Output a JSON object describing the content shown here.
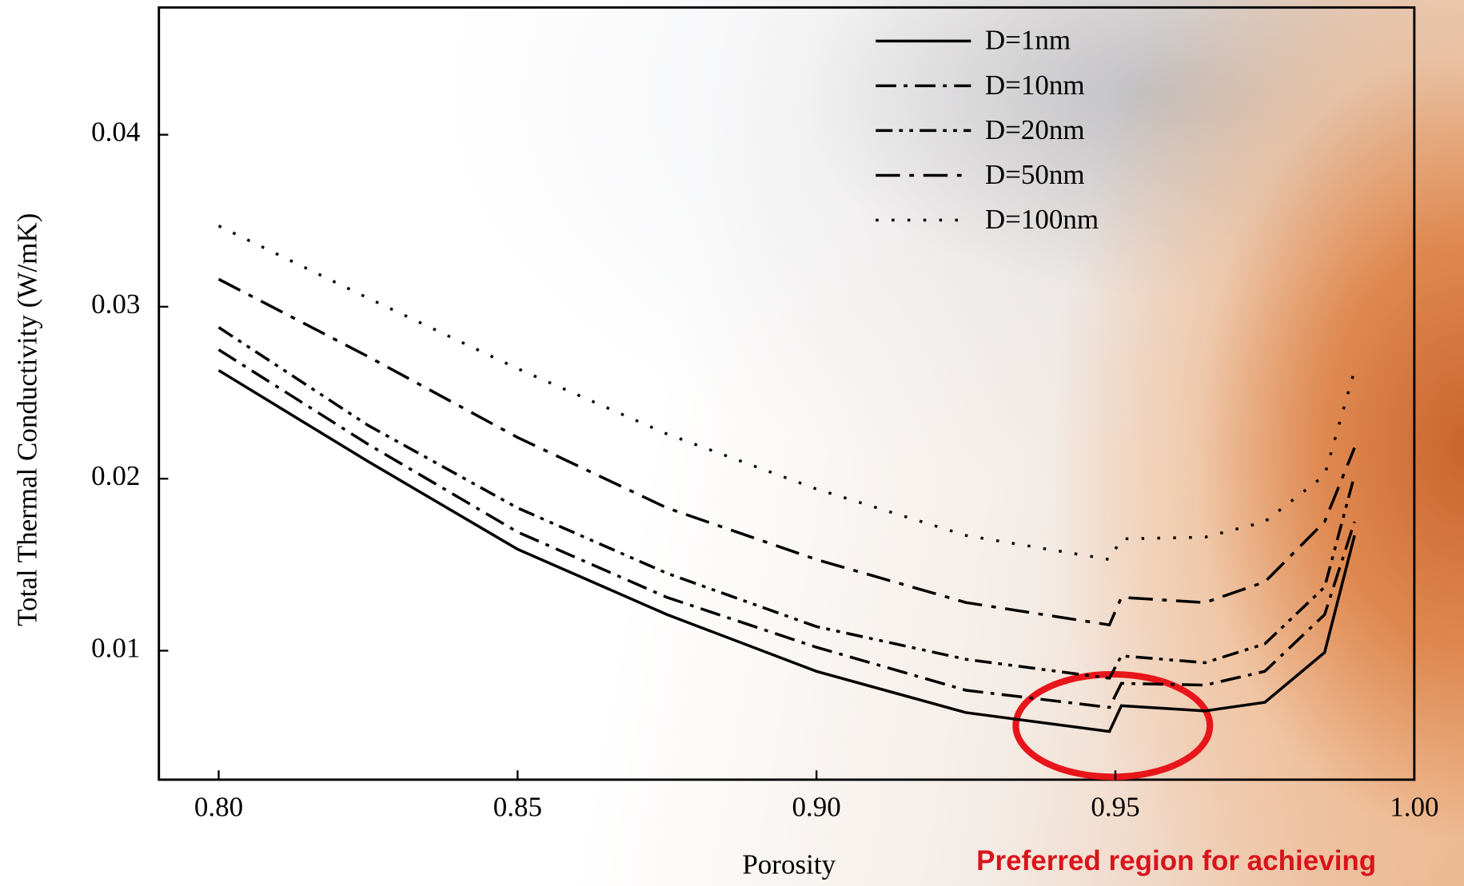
{
  "chart_data": {
    "type": "line",
    "x_label": "Porosity",
    "y_label": "Total Thermal Conductivity (W/mK)",
    "annotation": "Preferred region for achieving",
    "x": [
      0.8,
      0.825,
      0.85,
      0.875,
      0.9,
      0.925,
      0.949,
      0.951,
      0.965,
      0.975,
      0.985,
      0.99
    ],
    "series": [
      {
        "name": "D=1nm",
        "color": "#000000",
        "dash": "none",
        "values": [
          0.0263,
          0.021,
          0.0159,
          0.0121,
          0.0088,
          0.0064,
          0.0053,
          0.0068,
          0.0065,
          0.007,
          0.0099,
          0.0167
        ]
      },
      {
        "name": "D=10nm",
        "color": "#000000",
        "dash": "22,8,4,8",
        "values": [
          0.0275,
          0.022,
          0.0169,
          0.0131,
          0.0102,
          0.0077,
          0.0067,
          0.0081,
          0.008,
          0.0088,
          0.0121,
          0.0175
        ]
      },
      {
        "name": "D=20nm",
        "color": "#000000",
        "dash": "18,7,4,7,4,7",
        "values": [
          0.0288,
          0.0231,
          0.0183,
          0.0145,
          0.0114,
          0.0095,
          0.0084,
          0.0097,
          0.0093,
          0.0104,
          0.0137,
          0.0202
        ]
      },
      {
        "name": "D=50nm",
        "color": "#000000",
        "dash": "26,10,5,10",
        "values": [
          0.0316,
          0.0271,
          0.0224,
          0.0183,
          0.0153,
          0.0128,
          0.0115,
          0.0131,
          0.0128,
          0.014,
          0.0175,
          0.0218
        ]
      },
      {
        "name": "D=100nm",
        "color": "#000000",
        "dash": "3,14",
        "values": [
          0.0347,
          0.0305,
          0.0264,
          0.0226,
          0.0194,
          0.0167,
          0.0153,
          0.0165,
          0.0166,
          0.0175,
          0.0202,
          0.0263
        ]
      }
    ],
    "xlim": [
      0.79,
      1.0
    ],
    "ylim": [
      0.0025,
      0.0474
    ],
    "xticks": [
      {
        "value": 0.8,
        "label": "0.80"
      },
      {
        "value": 0.85,
        "label": "0.85"
      },
      {
        "value": 0.9,
        "label": "0.90"
      },
      {
        "value": 0.95,
        "label": "0.95"
      },
      {
        "value": 1.0,
        "label": "1.00"
      }
    ],
    "yticks": [
      0.01,
      0.02,
      0.03,
      0.04
    ],
    "grid": false,
    "legend": "top-right"
  }
}
